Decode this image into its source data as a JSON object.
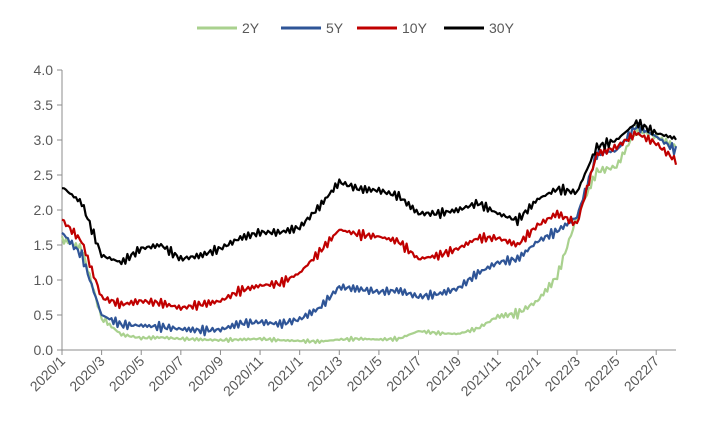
{
  "chart_data": {
    "type": "line",
    "title": "",
    "xlabel": "",
    "ylabel": "",
    "ylim": [
      0,
      4.0
    ],
    "yticks": [
      "0.0",
      "0.5",
      "1.0",
      "1.5",
      "2.0",
      "2.5",
      "3.0",
      "3.5",
      "4.0"
    ],
    "xticks": [
      "2020/1",
      "2020/3",
      "2020/5",
      "2020/7",
      "2020/9",
      "2020/11",
      "2021/1",
      "2021/3",
      "2021/5",
      "2021/7",
      "2021/9",
      "2021/11",
      "2022/1",
      "2022/3",
      "2022/5",
      "2022/7"
    ],
    "x_range": [
      "2020/1",
      "2022/8"
    ],
    "grid": false,
    "legend_position": "top-center",
    "x": [
      "2020/1",
      "2020/2",
      "2020/3",
      "2020/4",
      "2020/5",
      "2020/6",
      "2020/7",
      "2020/8",
      "2020/9",
      "2020/10",
      "2020/11",
      "2020/12",
      "2021/1",
      "2021/2",
      "2021/3",
      "2021/4",
      "2021/5",
      "2021/6",
      "2021/7",
      "2021/8",
      "2021/9",
      "2021/10",
      "2021/11",
      "2021/12",
      "2022/1",
      "2022/2",
      "2022/3",
      "2022/4",
      "2022/5",
      "2022/6",
      "2022/7",
      "2022/8"
    ],
    "series": [
      {
        "name": "2Y",
        "color": "#a9d18e",
        "values": [
          1.58,
          1.45,
          0.45,
          0.22,
          0.17,
          0.18,
          0.16,
          0.15,
          0.14,
          0.15,
          0.16,
          0.14,
          0.13,
          0.12,
          0.15,
          0.16,
          0.15,
          0.16,
          0.27,
          0.24,
          0.23,
          0.31,
          0.48,
          0.52,
          0.7,
          1.05,
          1.9,
          2.55,
          2.62,
          3.15,
          3.05,
          2.9
        ]
      },
      {
        "name": "5Y",
        "color": "#2f5597",
        "values": [
          1.68,
          1.35,
          0.5,
          0.36,
          0.35,
          0.33,
          0.3,
          0.28,
          0.29,
          0.38,
          0.4,
          0.37,
          0.44,
          0.6,
          0.9,
          0.87,
          0.83,
          0.85,
          0.76,
          0.8,
          0.88,
          1.1,
          1.25,
          1.3,
          1.55,
          1.7,
          1.9,
          2.8,
          2.85,
          3.2,
          3.05,
          2.85
        ]
      },
      {
        "name": "10Y",
        "color": "#c00000",
        "values": [
          1.86,
          1.55,
          0.75,
          0.65,
          0.7,
          0.67,
          0.6,
          0.65,
          0.7,
          0.85,
          0.92,
          0.95,
          1.1,
          1.4,
          1.72,
          1.65,
          1.62,
          1.55,
          1.3,
          1.35,
          1.45,
          1.6,
          1.6,
          1.5,
          1.78,
          1.95,
          1.8,
          2.8,
          2.9,
          3.1,
          2.95,
          2.7
        ]
      },
      {
        "name": "30Y",
        "color": "#000000",
        "values": [
          2.33,
          2.1,
          1.35,
          1.25,
          1.45,
          1.5,
          1.3,
          1.35,
          1.45,
          1.6,
          1.68,
          1.68,
          1.75,
          2.05,
          2.4,
          2.3,
          2.28,
          2.2,
          1.95,
          1.95,
          2.0,
          2.1,
          1.95,
          1.85,
          2.15,
          2.3,
          2.25,
          2.9,
          3.0,
          3.25,
          3.1,
          3.02
        ]
      }
    ]
  }
}
